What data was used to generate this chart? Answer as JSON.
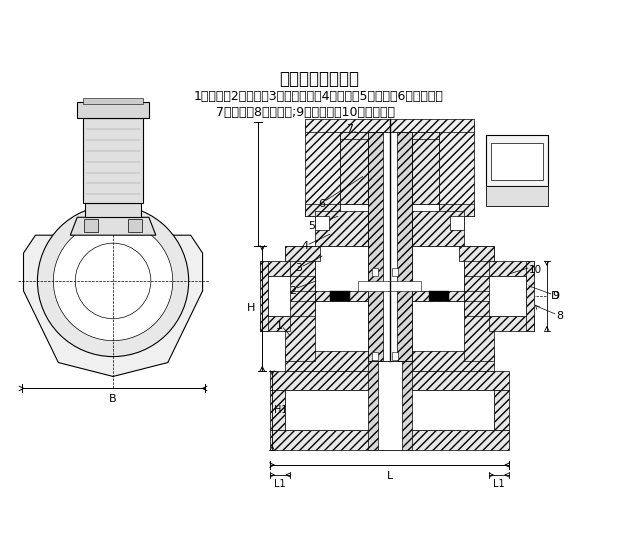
{
  "title": "分布直动式结构图",
  "caption_line1": "1：阀体；2：活塞；3：活塞弹簧；4：中盖；5：上盖；6：动铁芯；",
  "caption_line2": "7：线圈；8：活塞环;9：节流孔；10：先导孔。",
  "bg_color": "#ffffff",
  "line_color": "#000000",
  "title_fontsize": 12,
  "caption_fontsize": 9
}
